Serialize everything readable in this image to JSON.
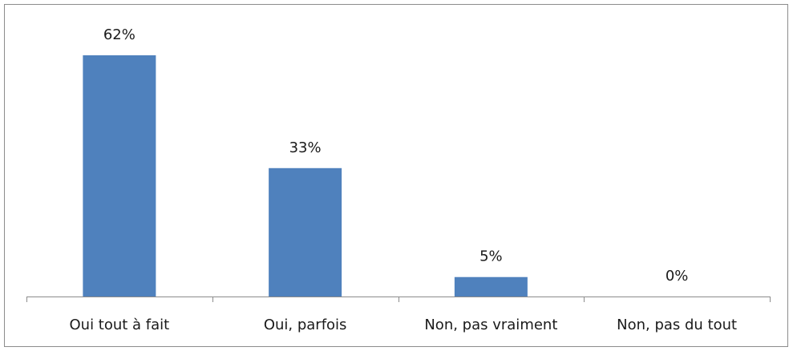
{
  "chart_data": {
    "type": "bar",
    "categories": [
      "Oui tout à fait",
      "Oui, parfois",
      "Non, pas vraiment",
      "Non, pas du tout"
    ],
    "values": [
      62,
      33,
      5,
      0
    ],
    "value_labels": [
      "62%",
      "33%",
      "5%",
      "0%"
    ],
    "color": "#4f81bd"
  }
}
